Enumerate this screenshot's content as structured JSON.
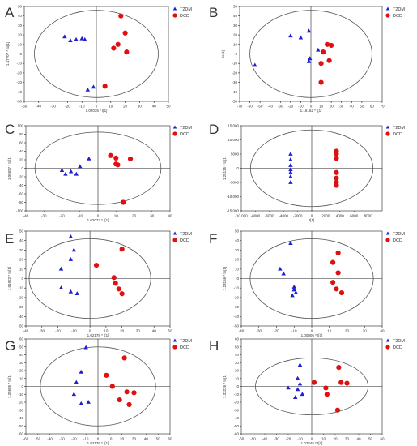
{
  "chart_data": [
    {
      "panel": "A",
      "type": "scatter",
      "xlabel": "1.02035 * t[1]",
      "ylabel": "1.47707 * to[1]",
      "xticks": [
        -50,
        -40,
        -30,
        -20,
        -10,
        0,
        10,
        20,
        30,
        40,
        50
      ],
      "yticks": [
        -50,
        -40,
        -30,
        -20,
        -10,
        0,
        10,
        20,
        30,
        40,
        50
      ],
      "xlim": [
        -50,
        50
      ],
      "ylim": [
        -50,
        50
      ],
      "ellipse": {
        "rx": 43,
        "ry": 46
      },
      "legend": [
        "T2DM",
        "DCD"
      ],
      "series": [
        {
          "name": "T2DM",
          "marker": "triangle",
          "color": "#1f1fd0",
          "points": [
            [
              -22,
              18
            ],
            [
              -18,
              14
            ],
            [
              -14,
              15
            ],
            [
              -10,
              16
            ],
            [
              -8,
              15
            ],
            [
              -6,
              -38
            ],
            [
              -2,
              -35
            ]
          ]
        },
        {
          "name": "DCD",
          "marker": "circle",
          "color": "#e01010",
          "points": [
            [
              12,
              6
            ],
            [
              15,
              10
            ],
            [
              17,
              40
            ],
            [
              20,
              22
            ],
            [
              21,
              2
            ],
            [
              6,
              -34
            ]
          ]
        }
      ]
    },
    {
      "panel": "B",
      "type": "scatter",
      "xlabel": "1.16162 * t[1]",
      "ylabel": "to[1]",
      "xticks": [
        -70,
        -60,
        -50,
        -40,
        -30,
        -20,
        -10,
        0,
        10,
        20,
        30,
        40,
        50,
        60,
        70
      ],
      "yticks": [
        -50,
        -40,
        -30,
        -20,
        -10,
        0,
        10,
        20,
        30,
        40,
        50
      ],
      "xlim": [
        -70,
        70
      ],
      "ylim": [
        -50,
        50
      ],
      "ellipse": {
        "rx": 60,
        "ry": 46
      },
      "legend": [
        "T2DM",
        "DCD"
      ],
      "series": [
        {
          "name": "T2DM",
          "marker": "triangle",
          "color": "#1f1fd0",
          "points": [
            [
              -55,
              -12
            ],
            [
              -20,
              19
            ],
            [
              -10,
              17
            ],
            [
              -2,
              24
            ],
            [
              -1,
              -5
            ],
            [
              -2,
              -8
            ],
            [
              7,
              4
            ]
          ]
        },
        {
          "name": "DCD",
          "marker": "circle",
          "color": "#e01010",
          "points": [
            [
              10,
              -30
            ],
            [
              10,
              -10
            ],
            [
              12,
              2
            ],
            [
              16,
              10
            ],
            [
              20,
              9
            ],
            [
              18,
              -7
            ]
          ]
        }
      ]
    },
    {
      "panel": "C",
      "type": "scatter",
      "xlabel": "1.02073 * t[1]",
      "ylabel": "1.05697 * to[1]",
      "xticks": [
        -40,
        -30,
        -20,
        -10,
        0,
        10,
        20,
        30,
        40
      ],
      "yticks": [
        -100,
        -80,
        -60,
        -40,
        -20,
        0,
        20,
        40,
        60,
        80,
        100
      ],
      "xlim": [
        -40,
        40
      ],
      "ylim": [
        -100,
        100
      ],
      "ellipse": {
        "rx": 35,
        "ry": 85
      },
      "legend": [
        "T2DM",
        "DCD"
      ],
      "series": [
        {
          "name": "T2DM",
          "marker": "triangle",
          "color": "#1f1fd0",
          "points": [
            [
              -20,
              -5
            ],
            [
              -18,
              -14
            ],
            [
              -15,
              -8
            ],
            [
              -12,
              -14
            ],
            [
              -10,
              4
            ],
            [
              -5,
              22
            ]
          ]
        },
        {
          "name": "DCD",
          "marker": "circle",
          "color": "#e01010",
          "points": [
            [
              7,
              30
            ],
            [
              10,
              24
            ],
            [
              10,
              10
            ],
            [
              11,
              8
            ],
            [
              18,
              22
            ],
            [
              14,
              -80
            ]
          ]
        }
      ]
    },
    {
      "panel": "D",
      "type": "scatter",
      "xlabel": "t[1]",
      "ylabel": "1.25135 * to[1]",
      "xticks": [
        -10000,
        -8000,
        -6000,
        -4000,
        -2000,
        0,
        2000,
        4000,
        6000,
        8000
      ],
      "xticklabels": [
        "-10,000",
        "-8000",
        "-6000",
        "-4000",
        "-2000",
        "0",
        "2000",
        "4000",
        "6000",
        "8000"
      ],
      "yticks": [
        -15000,
        -10000,
        -5000,
        0,
        5000,
        10000,
        15000
      ],
      "yticklabels": [
        "-15,000",
        "-10,000",
        "-5000",
        "0",
        "5000",
        "10,000",
        "15,000"
      ],
      "xlim": [
        -10000,
        10000
      ],
      "ylim": [
        -15000,
        15000
      ],
      "ellipse": {
        "rx": 8700,
        "ry": 13500
      },
      "legend": [
        "T2DM",
        "DCD"
      ],
      "series": [
        {
          "name": "T2DM",
          "marker": "triangle",
          "color": "#1f1fd0",
          "points": [
            [
              -3000,
              5000
            ],
            [
              -3000,
              3000
            ],
            [
              -3000,
              1000
            ],
            [
              -3000,
              -500
            ],
            [
              -3000,
              -1500
            ],
            [
              -3000,
              -3000
            ],
            [
              -3000,
              -5000
            ]
          ]
        },
        {
          "name": "DCD",
          "marker": "circle",
          "color": "#e01010",
          "points": [
            [
              3500,
              6000
            ],
            [
              3500,
              5000
            ],
            [
              3500,
              3500
            ],
            [
              3500,
              -1500
            ],
            [
              3500,
              -3500
            ],
            [
              3500,
              -5000
            ],
            [
              3500,
              -6000
            ]
          ]
        }
      ]
    },
    {
      "panel": "E",
      "type": "scatter",
      "xlabel": "1.02178 * t[1]",
      "ylabel": "1.01922 * to[1]",
      "xticks": [
        -40,
        -30,
        -20,
        -10,
        0,
        10,
        20,
        30,
        40,
        50
      ],
      "yticks": [
        -50,
        -40,
        -30,
        -20,
        -10,
        0,
        10,
        20,
        30,
        40,
        50
      ],
      "xlim": [
        -40,
        50
      ],
      "ylim": [
        -50,
        50
      ],
      "ellipse": {
        "rx": 38,
        "ry": 42
      },
      "legend": [
        "T2DM",
        "DCD"
      ],
      "series": [
        {
          "name": "T2DM",
          "marker": "triangle",
          "color": "#1f1fd0",
          "points": [
            [
              -12,
              44
            ],
            [
              -10,
              30
            ],
            [
              -12,
              20
            ],
            [
              -18,
              10
            ],
            [
              -18,
              -10
            ],
            [
              -12,
              -14
            ],
            [
              -8,
              -16
            ]
          ]
        },
        {
          "name": "DCD",
          "marker": "circle",
          "color": "#e01010",
          "points": [
            [
              4,
              14
            ],
            [
              15,
              1
            ],
            [
              16,
              -5
            ],
            [
              18,
              -11
            ],
            [
              20,
              31
            ],
            [
              20,
              -16
            ]
          ]
        }
      ]
    },
    {
      "panel": "F",
      "type": "scatter",
      "xlabel": "1.00905 * t[1]",
      "ylabel": "1.23156 * to[1]",
      "xticks": [
        -40,
        -30,
        -20,
        -10,
        0,
        10,
        20,
        30,
        40
      ],
      "yticks": [
        -50,
        -40,
        -30,
        -20,
        -10,
        0,
        10,
        20,
        30,
        40,
        50
      ],
      "xlim": [
        -40,
        40
      ],
      "ylim": [
        -50,
        50
      ],
      "ellipse": {
        "rx": 35,
        "ry": 42
      },
      "legend": [
        "T2DM",
        "DCD"
      ],
      "series": [
        {
          "name": "T2DM",
          "marker": "triangle",
          "color": "#1f1fd0",
          "points": [
            [
              -12,
              37
            ],
            [
              -18,
              10
            ],
            [
              -16,
              5
            ],
            [
              -10,
              -9
            ],
            [
              -10,
              -12
            ],
            [
              -9,
              -15
            ],
            [
              -11,
              -18
            ]
          ]
        },
        {
          "name": "DCD",
          "marker": "circle",
          "color": "#e01010",
          "points": [
            [
              12,
              17
            ],
            [
              15,
              27
            ],
            [
              15,
              6
            ],
            [
              12,
              -4
            ],
            [
              14,
              -11
            ],
            [
              17,
              -15
            ]
          ]
        }
      ]
    },
    {
      "panel": "G",
      "type": "scatter",
      "xlabel": "1.02176 * t[1]",
      "ylabel": "1.35685 * to[1]",
      "xticks": [
        -60,
        -50,
        -40,
        -30,
        -20,
        -10,
        0,
        10,
        20,
        30,
        40,
        50,
        60
      ],
      "yticks": [
        -60,
        -50,
        -40,
        -30,
        -20,
        -10,
        0,
        10,
        20,
        30,
        40,
        50,
        60
      ],
      "xlim": [
        -60,
        60
      ],
      "ylim": [
        -60,
        60
      ],
      "ellipse": {
        "rx": 48,
        "ry": 50
      },
      "legend": [
        "T2DM",
        "DCD"
      ],
      "series": [
        {
          "name": "T2DM",
          "marker": "triangle",
          "color": "#1f1fd0",
          "points": [
            [
              -10,
              49
            ],
            [
              -14,
              18
            ],
            [
              -18,
              5
            ],
            [
              -20,
              -10
            ],
            [
              -14,
              -22
            ],
            [
              -8,
              -20
            ]
          ]
        },
        {
          "name": "DCD",
          "marker": "circle",
          "color": "#e01010",
          "points": [
            [
              7,
              14
            ],
            [
              22,
              36
            ],
            [
              12,
              0
            ],
            [
              24,
              -7
            ],
            [
              30,
              -8
            ],
            [
              18,
              -17
            ],
            [
              26,
              -23
            ]
          ]
        }
      ]
    },
    {
      "panel": "H",
      "type": "scatter",
      "xlabel": "1.02245 * t[1]",
      "ylabel": "1.33226 * to[1]",
      "xticks": [
        -60,
        -50,
        -40,
        -30,
        -20,
        -10,
        0,
        10,
        20,
        30,
        40,
        50,
        60
      ],
      "yticks": [
        -60,
        -50,
        -40,
        -30,
        -20,
        -10,
        0,
        10,
        20,
        30,
        40,
        50,
        60
      ],
      "xlim": [
        -60,
        60
      ],
      "ylim": [
        -60,
        60
      ],
      "ellipse": {
        "rx": 48,
        "ry": 36
      },
      "legend": [
        "T2DM",
        "DCD"
      ],
      "series": [
        {
          "name": "T2DM",
          "marker": "triangle",
          "color": "#1f1fd0",
          "points": [
            [
              -10,
              27
            ],
            [
              -12,
              10
            ],
            [
              -20,
              -2
            ],
            [
              -12,
              -4
            ],
            [
              -14,
              -14
            ],
            [
              -8,
              -10
            ],
            [
              -10,
              3
            ]
          ]
        },
        {
          "name": "DCD",
          "marker": "circle",
          "color": "#e01010",
          "points": [
            [
              2,
              5
            ],
            [
              12,
              -2
            ],
            [
              13,
              -10
            ],
            [
              22,
              -30
            ],
            [
              23,
              24
            ],
            [
              25,
              5
            ],
            [
              30,
              4
            ]
          ]
        }
      ]
    }
  ]
}
